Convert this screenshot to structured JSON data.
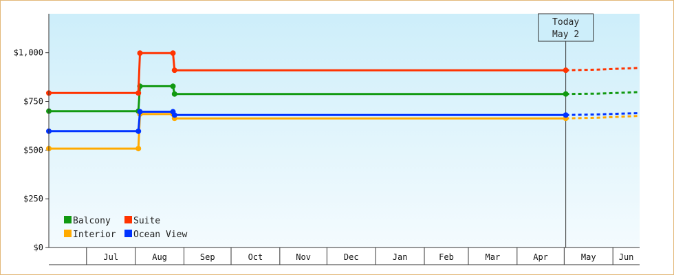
{
  "chart_data": {
    "type": "line",
    "style": "step",
    "ylim": [
      0,
      1200
    ],
    "y_ticks": [
      {
        "value": 0,
        "label": "$0"
      },
      {
        "value": 250,
        "label": "$250"
      },
      {
        "value": 500,
        "label": "$500"
      },
      {
        "value": 750,
        "label": "$750"
      },
      {
        "value": 1000,
        "label": "$1,000"
      }
    ],
    "x_range": [
      "2021-06-07",
      "2022-06-18"
    ],
    "x_months": [
      {
        "label": "Jul",
        "start": "2021-07-01"
      },
      {
        "label": "Aug",
        "start": "2021-08-01"
      },
      {
        "label": "Sep",
        "start": "2021-09-01"
      },
      {
        "label": "Oct",
        "start": "2021-10-01"
      },
      {
        "label": "Nov",
        "start": "2021-11-01"
      },
      {
        "label": "Dec",
        "start": "2021-12-01"
      },
      {
        "label": "Jan",
        "start": "2022-01-01"
      },
      {
        "label": "Feb",
        "start": "2022-02-01"
      },
      {
        "label": "Mar",
        "start": "2022-03-01"
      },
      {
        "label": "Apr",
        "start": "2022-04-01"
      },
      {
        "label": "May",
        "start": "2022-05-01"
      },
      {
        "label": "Jun",
        "start": "2022-06-01"
      }
    ],
    "today": {
      "line1": "Today",
      "line2": "May 2",
      "date": "2022-05-02"
    },
    "legend_position": "bottom-left",
    "series": [
      {
        "name": "Balcony",
        "color": "#119911",
        "points": [
          [
            "2021-06-07",
            700
          ],
          [
            "2021-08-03",
            700
          ],
          [
            "2021-08-04",
            828
          ],
          [
            "2021-08-25",
            828
          ],
          [
            "2021-08-26",
            788
          ],
          [
            "2022-05-02",
            788
          ]
        ],
        "forecast": [
          [
            "2022-05-02",
            788
          ],
          [
            "2022-05-22",
            790
          ],
          [
            "2022-06-02",
            793
          ],
          [
            "2022-06-18",
            798
          ]
        ]
      },
      {
        "name": "Suite",
        "color": "#ff3300",
        "points": [
          [
            "2021-06-07",
            793
          ],
          [
            "2021-08-03",
            793
          ],
          [
            "2021-08-04",
            998
          ],
          [
            "2021-08-25",
            998
          ],
          [
            "2021-08-26",
            910
          ],
          [
            "2022-05-02",
            910
          ]
        ],
        "forecast": [
          [
            "2022-05-02",
            910
          ],
          [
            "2022-05-22",
            913
          ],
          [
            "2022-06-02",
            917
          ],
          [
            "2022-06-18",
            922
          ]
        ]
      },
      {
        "name": "Interior",
        "color": "#ffaa00",
        "points": [
          [
            "2021-06-07",
            508
          ],
          [
            "2021-08-03",
            508
          ],
          [
            "2021-08-04",
            685
          ],
          [
            "2021-08-25",
            685
          ],
          [
            "2021-08-26",
            663
          ],
          [
            "2022-05-02",
            663
          ]
        ],
        "forecast": [
          [
            "2022-05-02",
            663
          ],
          [
            "2022-05-22",
            666
          ],
          [
            "2022-06-02",
            670
          ],
          [
            "2022-06-18",
            676
          ]
        ]
      },
      {
        "name": "Ocean View",
        "color": "#0033ff",
        "points": [
          [
            "2021-06-07",
            597
          ],
          [
            "2021-08-03",
            597
          ],
          [
            "2021-08-04",
            697
          ],
          [
            "2021-08-25",
            697
          ],
          [
            "2021-08-26",
            680
          ],
          [
            "2022-05-02",
            680
          ]
        ],
        "forecast": [
          [
            "2022-05-02",
            680
          ],
          [
            "2022-05-22",
            683
          ],
          [
            "2022-06-02",
            686
          ],
          [
            "2022-06-18",
            690
          ]
        ]
      }
    ]
  }
}
